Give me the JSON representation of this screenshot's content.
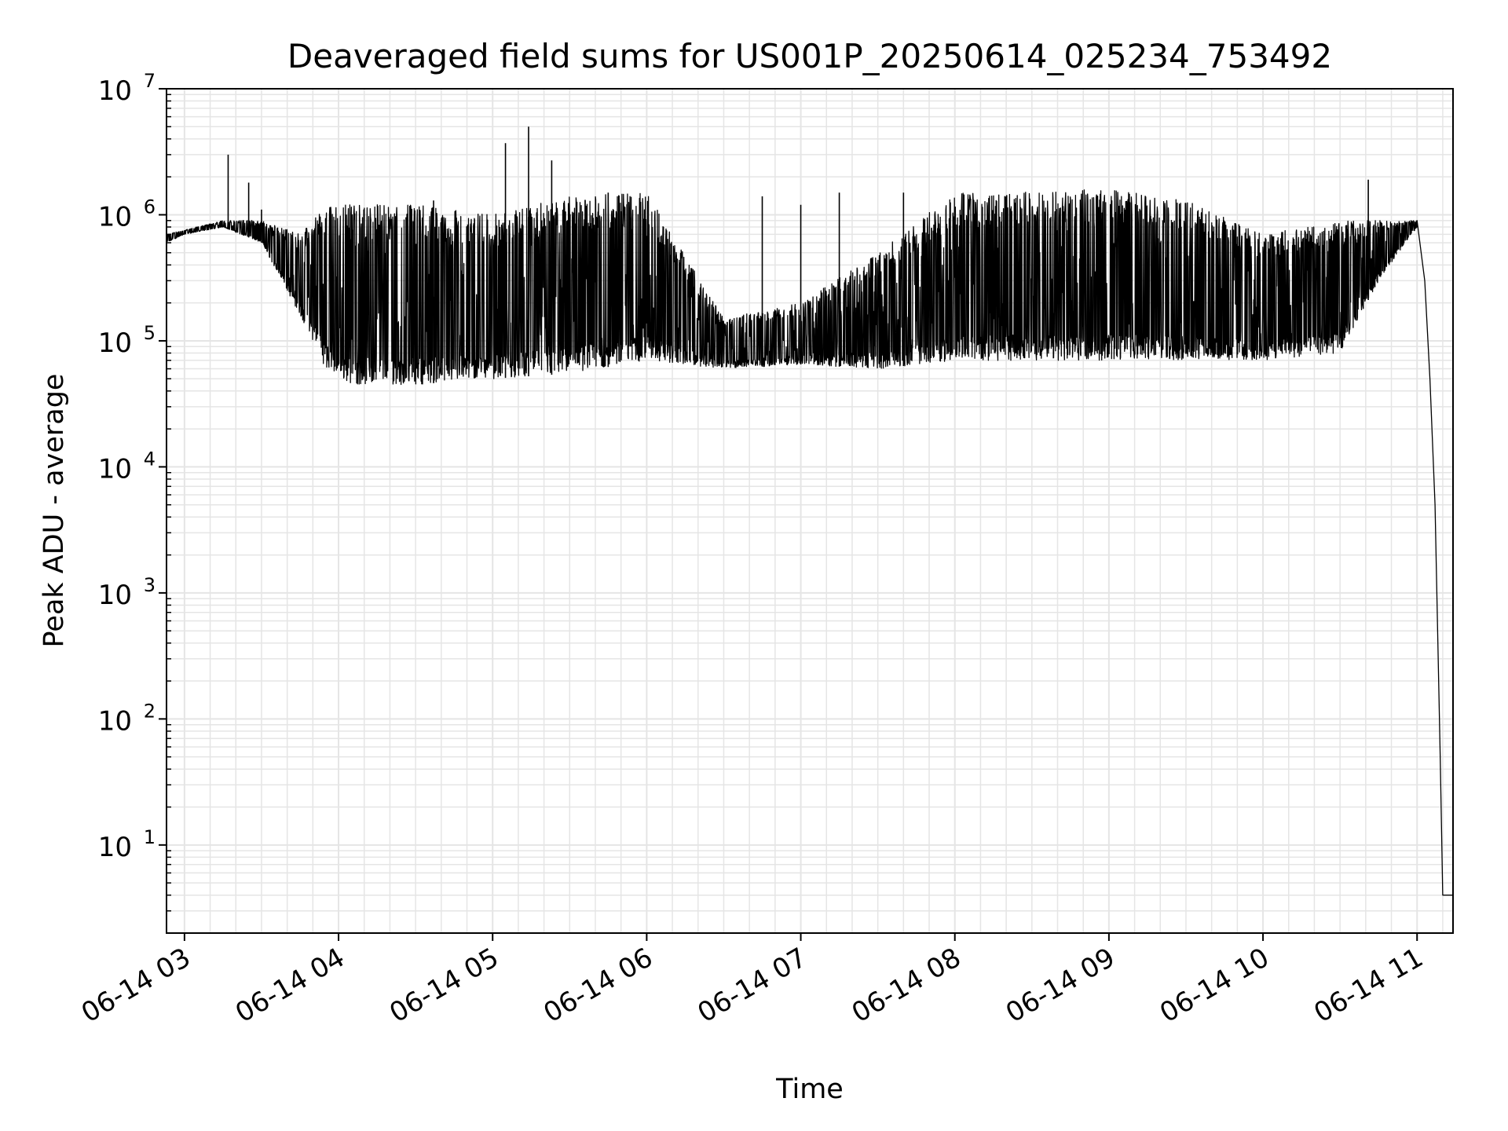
{
  "chart_data": {
    "type": "line",
    "title": "Deaveraged field sums for US001P_20250614_025234_753492",
    "xlabel": "Time",
    "ylabel": "Peak ADU - average",
    "yscale": "log",
    "ylim": [
      2,
      10000000
    ],
    "xlim": [
      "06-14 02:53",
      "06-14 11:14"
    ],
    "grid": true,
    "line_color": "#000000",
    "grid_color": "#e5e5e5",
    "y_ticks": [
      {
        "value": 10,
        "base": "10",
        "exp": "1"
      },
      {
        "value": 100,
        "base": "10",
        "exp": "2"
      },
      {
        "value": 1000,
        "base": "10",
        "exp": "3"
      },
      {
        "value": 10000,
        "base": "10",
        "exp": "4"
      },
      {
        "value": 100000,
        "base": "10",
        "exp": "5"
      },
      {
        "value": 1000000,
        "base": "10",
        "exp": "6"
      },
      {
        "value": 10000000,
        "base": "10",
        "exp": "7"
      }
    ],
    "x_ticks": [
      {
        "time": "06-14 03:00",
        "label": "06-14 03"
      },
      {
        "time": "06-14 04:00",
        "label": "06-14 04"
      },
      {
        "time": "06-14 05:00",
        "label": "06-14 05"
      },
      {
        "time": "06-14 06:00",
        "label": "06-14 06"
      },
      {
        "time": "06-14 07:00",
        "label": "06-14 07"
      },
      {
        "time": "06-14 08:00",
        "label": "06-14 08"
      },
      {
        "time": "06-14 09:00",
        "label": "06-14 09"
      },
      {
        "time": "06-14 10:00",
        "label": "06-14 10"
      },
      {
        "time": "06-14 11:00",
        "label": "06-14 11"
      }
    ],
    "series": [
      {
        "floor_points": [
          [
            "06-14 02:53",
            600000
          ],
          [
            "06-14 03:00",
            700000
          ],
          [
            "06-14 03:15",
            800000
          ],
          [
            "06-14 03:30",
            600000
          ],
          [
            "06-14 03:40",
            250000
          ],
          [
            "06-14 03:50",
            100000
          ],
          [
            "06-14 03:55",
            60000
          ],
          [
            "06-14 04:05",
            45000
          ],
          [
            "06-14 04:30",
            45000
          ],
          [
            "06-14 05:00",
            50000
          ],
          [
            "06-14 05:30",
            55000
          ],
          [
            "06-14 06:00",
            70000
          ],
          [
            "06-14 06:30",
            60000
          ],
          [
            "06-14 07:00",
            65000
          ],
          [
            "06-14 07:30",
            60000
          ],
          [
            "06-14 08:00",
            70000
          ],
          [
            "06-14 08:30",
            70000
          ],
          [
            "06-14 09:00",
            70000
          ],
          [
            "06-14 09:30",
            70000
          ],
          [
            "06-14 10:00",
            70000
          ],
          [
            "06-14 10:30",
            80000
          ],
          [
            "06-14 10:45",
            300000
          ],
          [
            "06-14 11:00",
            800000
          ]
        ],
        "ceiling_points": [
          [
            "06-14 02:53",
            700000
          ],
          [
            "06-14 03:15",
            900000
          ],
          [
            "06-14 03:30",
            900000
          ],
          [
            "06-14 03:45",
            700000
          ],
          [
            "06-14 03:55",
            1200000
          ],
          [
            "06-14 04:30",
            1200000
          ],
          [
            "06-14 05:00",
            1000000
          ],
          [
            "06-14 05:30",
            1400000
          ],
          [
            "06-14 06:00",
            1500000
          ],
          [
            "06-14 06:30",
            150000
          ],
          [
            "06-14 07:00",
            200000
          ],
          [
            "06-14 07:30",
            500000
          ],
          [
            "06-14 08:00",
            1500000
          ],
          [
            "06-14 09:00",
            1600000
          ],
          [
            "06-14 09:30",
            1300000
          ],
          [
            "06-14 10:00",
            700000
          ],
          [
            "06-14 10:30",
            900000
          ],
          [
            "06-14 11:00",
            900000
          ]
        ],
        "spikes": [
          [
            "06-14 03:17",
            3000000
          ],
          [
            "06-14 03:25",
            1800000
          ],
          [
            "06-14 03:30",
            1100000
          ],
          [
            "06-14 04:37",
            1300000
          ],
          [
            "06-14 05:05",
            3700000
          ],
          [
            "06-14 05:14",
            5000000
          ],
          [
            "06-14 05:23",
            2700000
          ],
          [
            "06-14 05:45",
            1500000
          ],
          [
            "06-14 06:45",
            1400000
          ],
          [
            "06-14 07:00",
            1200000
          ],
          [
            "06-14 07:15",
            1500000
          ],
          [
            "06-14 07:40",
            1500000
          ],
          [
            "06-14 10:41",
            1900000
          ]
        ],
        "dropoff_points": [
          [
            "06-14 11:00",
            900000
          ],
          [
            "06-14 11:03",
            300000
          ],
          [
            "06-14 11:05",
            50000
          ],
          [
            "06-14 11:07",
            5000
          ],
          [
            "06-14 11:08",
            500
          ],
          [
            "06-14 11:09",
            50
          ],
          [
            "06-14 11:10",
            4
          ],
          [
            "06-14 11:14",
            4
          ]
        ]
      }
    ]
  }
}
